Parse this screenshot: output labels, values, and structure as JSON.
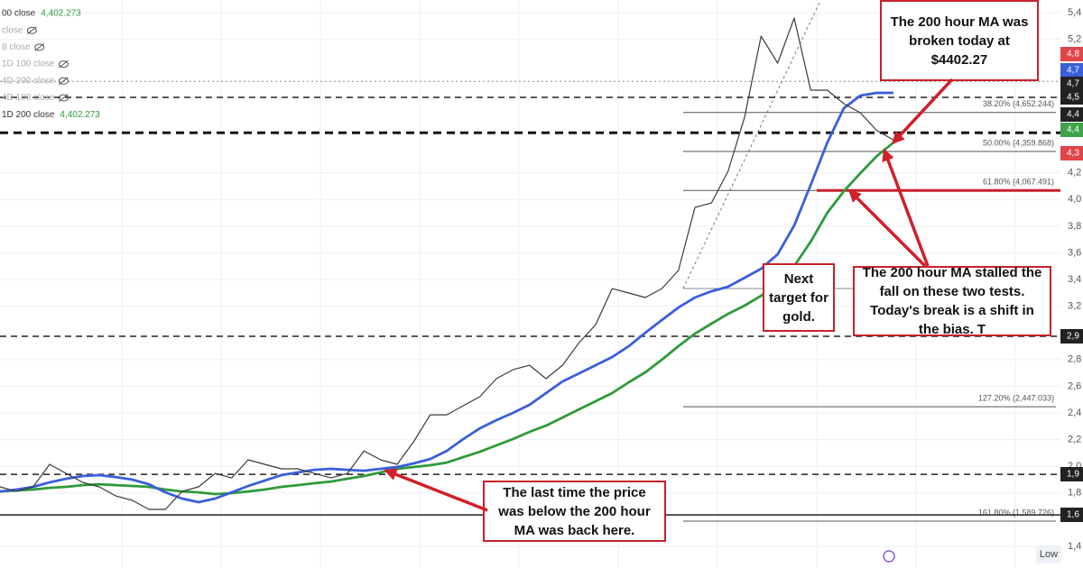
{
  "chart_data": {
    "type": "line",
    "categories": [
      null,
      null,
      null,
      null,
      null,
      null,
      null,
      null,
      null,
      null,
      null,
      null,
      null,
      null,
      null,
      null,
      null,
      null,
      null,
      null,
      null,
      null,
      null,
      null,
      null,
      null,
      null,
      null,
      null,
      null,
      null,
      null,
      null,
      null,
      null,
      null,
      null,
      null,
      null,
      null,
      null,
      null,
      null,
      null,
      null,
      null,
      null,
      null,
      null,
      null,
      null,
      null,
      null,
      null,
      null
    ],
    "series": [
      {
        "name": "1D 200 close",
        "color": "#2f9a3a",
        "values": [
          1812,
          1819,
          1826,
          1839,
          1846,
          1859,
          1866,
          1859,
          1853,
          1846,
          1826,
          1812,
          1805,
          1792,
          1799,
          1812,
          1826,
          1846,
          1859,
          1873,
          1886,
          1907,
          1927,
          1954,
          1981,
          1995,
          2008,
          2028,
          2069,
          2109,
          2157,
          2204,
          2258,
          2305,
          2366,
          2427,
          2488,
          2549,
          2630,
          2704,
          2799,
          2900,
          2994,
          3069,
          3143,
          3204,
          3278,
          3373,
          3501,
          3684,
          3900,
          4062,
          4197,
          4326,
          4427
        ]
      },
      {
        "name": "1D 100 close",
        "color": "#3a5fd9",
        "values": [
          1812,
          1826,
          1846,
          1880,
          1907,
          1927,
          1934,
          1920,
          1900,
          1866,
          1805,
          1758,
          1731,
          1758,
          1805,
          1853,
          1893,
          1934,
          1954,
          1974,
          1981,
          1974,
          1967,
          1981,
          1995,
          2022,
          2055,
          2116,
          2204,
          2285,
          2346,
          2400,
          2461,
          2549,
          2636,
          2697,
          2758,
          2819,
          2900,
          3001,
          3096,
          3190,
          3265,
          3312,
          3346,
          3413,
          3481,
          3589,
          3805,
          4109,
          4427,
          4684,
          4779,
          4799,
          4799
        ]
      },
      {
        "name": "00 close",
        "color": "#3a3a3a",
        "values": [
          1846,
          1812,
          1846,
          2015,
          1947,
          1880,
          1846,
          1778,
          1745,
          1677,
          1677,
          1812,
          1846,
          1947,
          1913,
          2049,
          2015,
          1981,
          1981,
          1947,
          1913,
          1947,
          2116,
          2049,
          2015,
          2184,
          2386,
          2386,
          2454,
          2522,
          2657,
          2724,
          2758,
          2657,
          2758,
          2927,
          3062,
          3332,
          3299,
          3265,
          3332,
          3468,
          3940,
          3974,
          4211,
          4616,
          5224,
          5022,
          5359,
          4819,
          4819,
          4718,
          4650,
          4515,
          4447
        ]
      }
    ],
    "ylim": [
      1238,
      5495
    ],
    "yticks": [
      {
        "value": 5400,
        "label": "5,4"
      },
      {
        "value": 5200,
        "label": "5,2"
      },
      {
        "value": 4200,
        "label": "4,2"
      },
      {
        "value": 4000,
        "label": "4,0"
      },
      {
        "value": 3800,
        "label": "3,8"
      },
      {
        "value": 3600,
        "label": "3,6"
      },
      {
        "value": 3400,
        "label": "3,4"
      },
      {
        "value": 3200,
        "label": "3,2"
      },
      {
        "value": 2800,
        "label": "2,8"
      },
      {
        "value": 2600,
        "label": "2,6"
      },
      {
        "value": 2400,
        "label": "2,4"
      },
      {
        "value": 2200,
        "label": "2,2"
      },
      {
        "value": 2000,
        "label": "2,0"
      },
      {
        "value": 1800,
        "label": "1,8"
      },
      {
        "value": 1400,
        "label": "1,4"
      }
    ],
    "grid": true,
    "legend_items": [
      {
        "text": "00 close",
        "value_text": "4,402.273"
      },
      {
        "text": "close"
      },
      {
        "text": "8 close"
      },
      {
        "text": "1D 100 close"
      },
      {
        "text": "4D 200 close"
      },
      {
        "text": "4D 100 close"
      },
      {
        "text": "1D 200 close",
        "value_text": "4,402.273"
      }
    ],
    "levels": [
      {
        "value": 4652.244,
        "label": "38.20% (4,652.244)"
      },
      {
        "value": 4359.868,
        "label": "50.00% (4,359.868)"
      },
      {
        "value": 4067.491,
        "label": "61.80% (4,067.491)",
        "highlight": "#c8202a"
      },
      {
        "value": 2447.033,
        "label": "127.20% (2,447.033)"
      },
      {
        "value": 1589.726,
        "label": "161.80% (1,589.726)"
      }
    ],
    "reference_lines": [
      {
        "value": 4885,
        "style": "dotted"
      },
      {
        "value": 4765,
        "style": "dashed"
      },
      {
        "value": 4500,
        "style": "dashed-bold"
      },
      {
        "value": 2975,
        "style": "dashed"
      },
      {
        "value": 1940,
        "style": "dashed"
      },
      {
        "value": 1636,
        "style": "solid"
      }
    ],
    "price_badges": [
      {
        "label": "4,8",
        "color": "#e0454a"
      },
      {
        "label": "4,7",
        "color": "#3a5fd9"
      },
      {
        "label": "4,7",
        "color": "#222"
      },
      {
        "label": "4,5",
        "color": "#222"
      },
      {
        "label": "4,4",
        "color": "#222"
      },
      {
        "label": "4,4",
        "color": "#3fa34a"
      },
      {
        "label": "4,3",
        "color": "#e0454a"
      },
      {
        "label": "2,9",
        "color": "#222"
      },
      {
        "label": "1,9",
        "color": "#222"
      },
      {
        "label": "1,6",
        "color": "#222"
      }
    ],
    "annotations": [
      "The 200 hour MA was broken today at $4402.27",
      "Next target for gold.",
      "The 200 hour MA stalled the fall on these two tests. Today's break is a shift in the bias.  T",
      "The last time the price was below the 200 hour MA was back here."
    ],
    "low_button": "Low"
  }
}
